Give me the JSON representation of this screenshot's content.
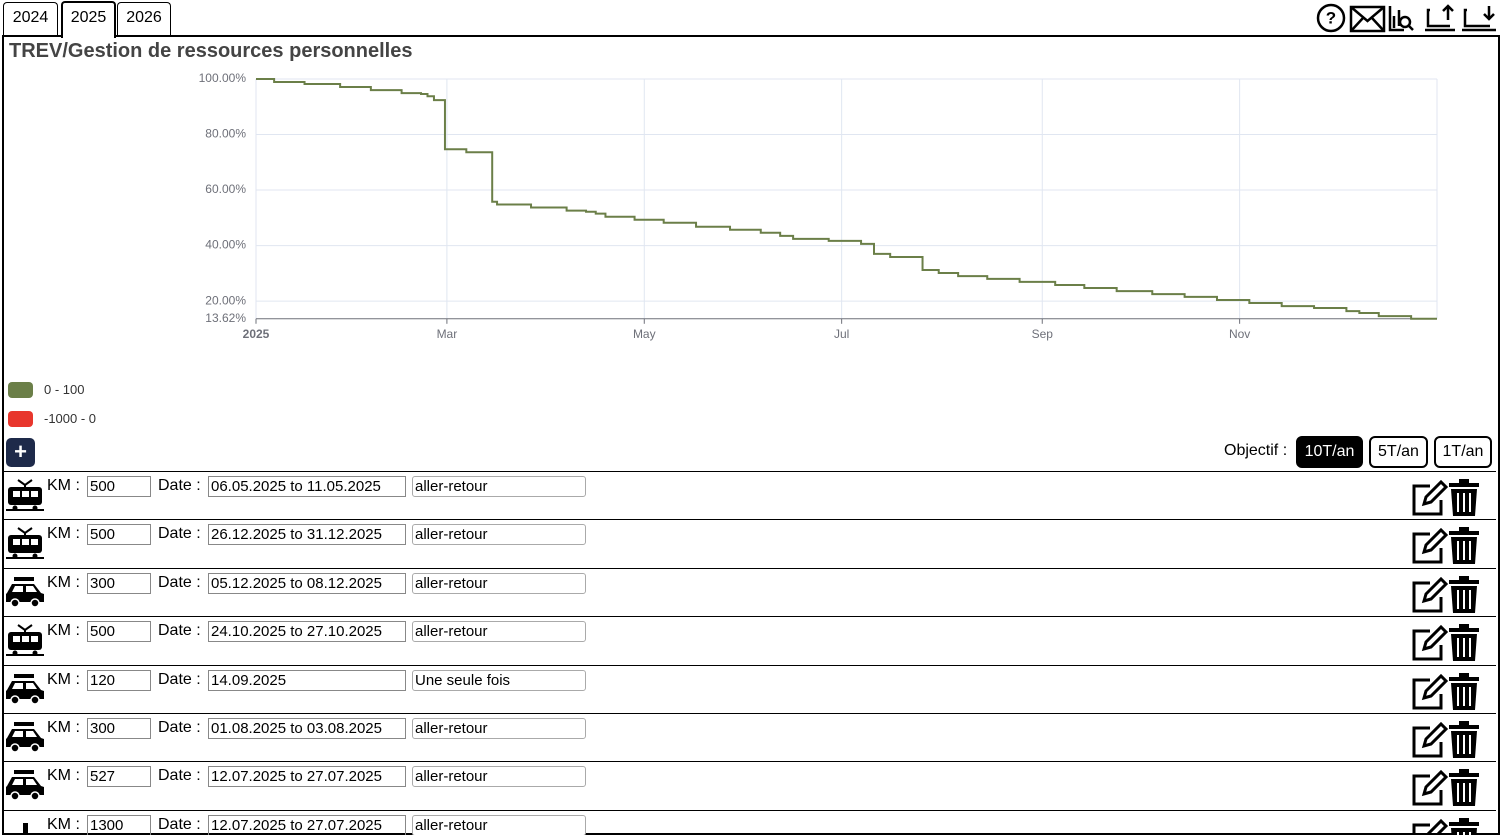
{
  "tabs": [
    "2024",
    "2025",
    "2026"
  ],
  "title": "TREV/Gestion de ressources personnelles",
  "chart_data": {
    "type": "line",
    "step": true,
    "x": [
      0,
      5.6,
      5.6,
      15,
      15,
      26,
      26,
      35.5,
      35.5,
      45,
      45,
      51,
      51,
      53,
      53,
      55,
      55,
      58.4,
      58.4,
      65,
      65,
      73,
      73,
      74.5,
      74.5,
      85,
      85,
      96,
      96,
      102,
      102,
      105,
      105,
      108,
      108,
      117,
      117,
      126,
      126,
      136,
      136,
      146.5,
      146.5,
      156,
      156,
      162,
      162,
      166,
      166,
      177,
      177,
      187,
      187,
      191,
      191,
      196,
      196,
      206,
      206,
      211,
      211,
      217,
      217,
      226,
      226,
      236,
      236,
      247,
      247,
      256,
      256,
      266,
      266,
      277,
      277,
      287,
      287,
      297,
      297,
      307,
      307,
      317,
      317,
      327,
      327,
      337,
      337,
      341,
      341,
      347,
      347,
      357,
      357,
      365
    ],
    "series": [
      {
        "color": "#6b7f48",
        "values": [
          100,
          100,
          98.9,
          98.9,
          98.2,
          98.2,
          97.1,
          97.1,
          96.0,
          96.0,
          94.9,
          94.9,
          94.6,
          94.6,
          93.8,
          93.8,
          92.4,
          92.4,
          74.7,
          74.7,
          73.6,
          73.6,
          55.8,
          55.8,
          54.8,
          54.8,
          53.7,
          53.7,
          52.6,
          52.6,
          52.2,
          52.2,
          51.5,
          51.5,
          50.4,
          50.4,
          49.3,
          49.3,
          48.2,
          48.2,
          46.8,
          46.8,
          45.7,
          45.7,
          44.6,
          44.6,
          43.5,
          43.5,
          42.4,
          42.4,
          41.7,
          41.7,
          40.6,
          40.6,
          37.0,
          37.0,
          35.9,
          35.9,
          31.2,
          31.2,
          30.1,
          30.1,
          29.0,
          29.0,
          28.0,
          28.0,
          26.9,
          26.9,
          25.8,
          25.8,
          24.7,
          24.7,
          23.6,
          23.6,
          22.5,
          22.5,
          21.5,
          21.5,
          20.4,
          20.4,
          19.3,
          19.3,
          18.2,
          18.2,
          17.5,
          17.5,
          16.4,
          16.4,
          15.7,
          15.7,
          14.6,
          14.6,
          13.62,
          13.62
        ]
      }
    ],
    "xlim": [
      0,
      365
    ],
    "xticks": [
      {
        "value": 0,
        "label": "2025"
      },
      {
        "value": 59,
        "label": "Mar"
      },
      {
        "value": 120,
        "label": "May"
      },
      {
        "value": 181,
        "label": "Jul"
      },
      {
        "value": 243,
        "label": "Sep"
      },
      {
        "value": 304,
        "label": "Nov"
      }
    ],
    "ylim": [
      13.62,
      100
    ],
    "yticks": [
      {
        "value": 13.62,
        "label": "13.62%"
      },
      {
        "value": 20,
        "label": "20.00%"
      },
      {
        "value": 40,
        "label": "40.00%"
      },
      {
        "value": 60,
        "label": "60.00%"
      },
      {
        "value": 80,
        "label": "80.00%"
      },
      {
        "value": 100,
        "label": "100.00%"
      }
    ],
    "grid": true,
    "pieces": [
      {
        "name": "0 - 100",
        "color": "#6b7f48"
      },
      {
        "name": "-1000 - 0",
        "color": "#e8362c"
      }
    ]
  },
  "add_button": "+",
  "objective_label": "Objectif :",
  "objectives": [
    "10T/an",
    "5T/an",
    "1T/an"
  ],
  "km_label": "KM :",
  "date_label": "Date :",
  "trips": [
    {
      "km": 500,
      "date": "06.05.2025 to 11.05.2025",
      "mode": "aller-retour"
    },
    {
      "km": 500,
      "date": "26.12.2025 to 31.12.2025",
      "mode": "aller-retour"
    },
    {
      "km": 300,
      "date": "05.12.2025 to 08.12.2025",
      "mode": "aller-retour"
    },
    {
      "km": 500,
      "date": "24.10.2025 to 27.10.2025",
      "mode": "aller-retour"
    },
    {
      "km": 120,
      "date": "14.09.2025",
      "mode": "Une seule fois"
    },
    {
      "km": 300,
      "date": "01.08.2025 to 03.08.2025",
      "mode": "aller-retour"
    },
    {
      "km": 527,
      "date": "12.07.2025 to 27.07.2025",
      "mode": "aller-retour"
    },
    {
      "km": 1300,
      "date": "12.07.2025 to 27.07.2025",
      "mode": "aller-retour"
    }
  ]
}
